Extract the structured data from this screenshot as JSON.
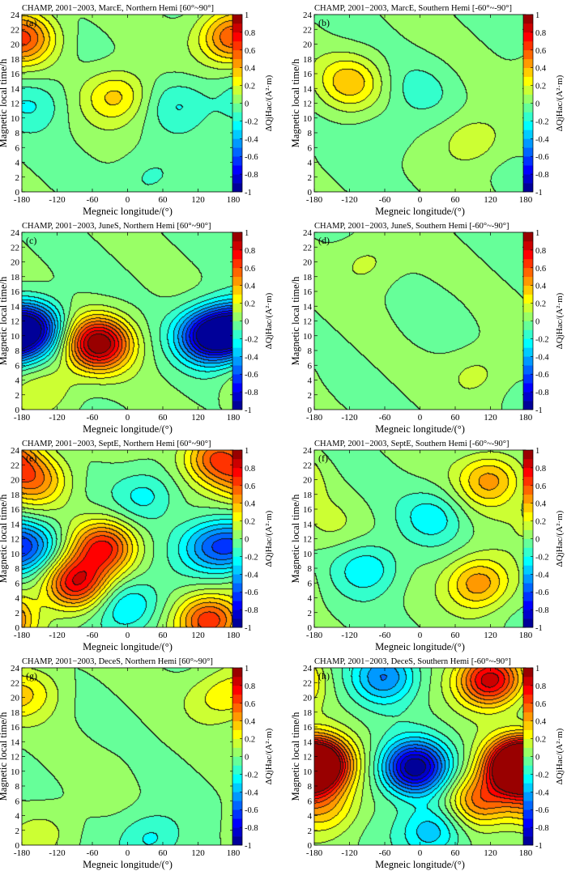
{
  "colorbar": {
    "ticks": [
      "1",
      "0.8",
      "0.6",
      "0.4",
      "0.2",
      "0",
      "-0.2",
      "-0.4",
      "-0.6",
      "-0.8",
      "-1"
    ],
    "label": "ΔQjHac/(A²·m)",
    "colormap": "jet",
    "range": [
      -1,
      1
    ]
  },
  "chart_data": [
    {
      "type": "heatmap",
      "panel": "(a)",
      "title": "CHAMP, 2001−2003, MarcE, Northern Hemi [60°~90°]",
      "xlabel": "Megneic longitude/(°)",
      "ylabel": "Magnetic local time/h",
      "xlim": [
        -180,
        180
      ],
      "ylim": [
        0,
        24
      ],
      "xticks": [
        "-180",
        "-120",
        "-60",
        "0",
        "60",
        "120",
        "180"
      ],
      "yticks": [
        "0",
        "2",
        "4",
        "6",
        "8",
        "10",
        "12",
        "14",
        "16",
        "18",
        "20",
        "22",
        "24"
      ],
      "features": [
        {
          "x": -20,
          "y": 13,
          "value": 0.35
        },
        {
          "x": -170,
          "y": 21,
          "value": 0.3
        },
        {
          "x": 170,
          "y": 21,
          "value": 0.35
        },
        {
          "x": -160,
          "y": 12,
          "value": -0.2
        },
        {
          "x": 90,
          "y": 12,
          "value": -0.2
        },
        {
          "x": 40,
          "y": 2,
          "value": -0.15
        }
      ]
    },
    {
      "type": "heatmap",
      "panel": "(b)",
      "title": "CHAMP, 2001−2003, MarcE, Southern Hemi [-60°~-90°]",
      "xlabel": "Megneic longitude/(°)",
      "ylabel": "Magnetic local time/h",
      "xlim": [
        -180,
        180
      ],
      "ylim": [
        0,
        24
      ],
      "xticks": [
        "-180",
        "-120",
        "-60",
        "0",
        "60",
        "120",
        "180"
      ],
      "yticks": [
        "0",
        "2",
        "4",
        "6",
        "8",
        "10",
        "12",
        "14",
        "16",
        "18",
        "20",
        "22",
        "24"
      ],
      "features": [
        {
          "x": -120,
          "y": 15,
          "value": 0.35
        },
        {
          "x": 90,
          "y": 7,
          "value": 0.2
        },
        {
          "x": 0,
          "y": 14,
          "value": -0.12
        },
        {
          "x": -60,
          "y": 8,
          "value": -0.1
        }
      ]
    },
    {
      "type": "heatmap",
      "panel": "(c)",
      "title": "CHAMP, 2001−2003, JuneS, Northern Hemi [60°~90°]",
      "xlabel": "Megneic longitude/(°)",
      "ylabel": "Magnetic local time/h",
      "xlim": [
        -180,
        180
      ],
      "ylim": [
        0,
        24
      ],
      "xticks": [
        "-180",
        "-120",
        "-60",
        "0",
        "60",
        "120",
        "180"
      ],
      "yticks": [
        "0",
        "2",
        "4",
        "6",
        "8",
        "10",
        "12",
        "14",
        "16",
        "18",
        "20",
        "22",
        "24"
      ],
      "features": [
        {
          "x": -50,
          "y": 9,
          "value": 1.0
        },
        {
          "x": -165,
          "y": 11,
          "value": -0.85
        },
        {
          "x": 140,
          "y": 10,
          "value": -0.95
        },
        {
          "x": -140,
          "y": 3,
          "value": 0.2
        }
      ]
    },
    {
      "type": "heatmap",
      "panel": "(d)",
      "title": "CHAMP, 2001−2003, JuneS, Southern Hemi [-60°~-90°]",
      "xlabel": "Megneic longitude/(°)",
      "ylabel": "Magnetic local time/h",
      "xlim": [
        -180,
        180
      ],
      "ylim": [
        0,
        24
      ],
      "xticks": [
        "-180",
        "-120",
        "-60",
        "0",
        "60",
        "120",
        "180"
      ],
      "yticks": [
        "0",
        "2",
        "4",
        "6",
        "8",
        "10",
        "12",
        "14",
        "16",
        "18",
        "20",
        "22",
        "24"
      ],
      "features": [
        {
          "x": -90,
          "y": 20,
          "value": 0.15
        },
        {
          "x": 100,
          "y": 5,
          "value": 0.15
        },
        {
          "x": 20,
          "y": 12,
          "value": -0.05
        }
      ]
    },
    {
      "type": "heatmap",
      "panel": "(e)",
      "title": "CHAMP, 2001−2003, SeptE, Northern Hemi [60°~90°]",
      "xlabel": "Megneic longitude/(°)",
      "ylabel": "Magnetic local time/h",
      "xlim": [
        -180,
        180
      ],
      "ylim": [
        0,
        24
      ],
      "xticks": [
        "-180",
        "-120",
        "-60",
        "0",
        "60",
        "120",
        "180"
      ],
      "yticks": [
        "0",
        "2",
        "4",
        "6",
        "8",
        "10",
        "12",
        "14",
        "16",
        "18",
        "20",
        "22",
        "24"
      ],
      "features": [
        {
          "x": -90,
          "y": 6,
          "value": 0.8
        },
        {
          "x": -40,
          "y": 11,
          "value": 0.7
        },
        {
          "x": -155,
          "y": 20,
          "value": 0.45
        },
        {
          "x": 150,
          "y": 23,
          "value": 0.6
        },
        {
          "x": 140,
          "y": 1,
          "value": 0.7
        },
        {
          "x": -165,
          "y": 11,
          "value": -0.45
        },
        {
          "x": 140,
          "y": 11,
          "value": -0.45
        },
        {
          "x": 30,
          "y": 18,
          "value": -0.25
        },
        {
          "x": 0,
          "y": 3,
          "value": -0.35
        }
      ]
    },
    {
      "type": "heatmap",
      "panel": "(f)",
      "title": "CHAMP, 2001−2003, SeptE, Southern Hemi [-60°~-90°]",
      "xlabel": "Megneic longitude/(°)",
      "ylabel": "Magnetic local time/h",
      "xlim": [
        -180,
        180
      ],
      "ylim": [
        0,
        24
      ],
      "xticks": [
        "-180",
        "-120",
        "-60",
        "0",
        "60",
        "120",
        "180"
      ],
      "yticks": [
        "0",
        "2",
        "4",
        "6",
        "8",
        "10",
        "12",
        "14",
        "16",
        "18",
        "20",
        "22",
        "24"
      ],
      "features": [
        {
          "x": 120,
          "y": 20,
          "value": 0.45
        },
        {
          "x": 100,
          "y": 6,
          "value": 0.5
        },
        {
          "x": -90,
          "y": 8,
          "value": -0.3
        },
        {
          "x": -160,
          "y": 14,
          "value": 0.1
        },
        {
          "x": 20,
          "y": 15,
          "value": -0.25
        }
      ]
    },
    {
      "type": "heatmap",
      "panel": "(g)",
      "title": "CHAMP, 2001−2003, DeceS, Northern Hemi [60°~90°]",
      "xlabel": "Megneic longitude/(°)",
      "ylabel": "Magnetic local time/h",
      "xlim": [
        -180,
        180
      ],
      "ylim": [
        0,
        24
      ],
      "xticks": [
        "-180",
        "-120",
        "-60",
        "0",
        "60",
        "120",
        "180"
      ],
      "yticks": [
        "0",
        "2",
        "4",
        "6",
        "8",
        "10",
        "12",
        "14",
        "16",
        "18",
        "20",
        "22",
        "24"
      ],
      "features": [
        {
          "x": -160,
          "y": 21,
          "value": 0.2
        },
        {
          "x": 150,
          "y": 20,
          "value": 0.2
        },
        {
          "x": 40,
          "y": 1,
          "value": -0.25
        },
        {
          "x": -140,
          "y": 2,
          "value": 0.15
        },
        {
          "x": 0,
          "y": 12,
          "value": 0.02
        }
      ]
    },
    {
      "type": "heatmap",
      "panel": "(h)",
      "title": "CHAMP, 2001−2003, DeceS, Southern Hemi [-60°~-90°]",
      "xlabel": "Megneic longitude/(°)",
      "ylabel": "Magnetic local time/h",
      "xlim": [
        -180,
        180
      ],
      "ylim": [
        0,
        24
      ],
      "xticks": [
        "-180",
        "-120",
        "-60",
        "0",
        "60",
        "120",
        "180"
      ],
      "yticks": [
        "0",
        "2",
        "4",
        "6",
        "8",
        "10",
        "12",
        "14",
        "16",
        "18",
        "20",
        "22",
        "24"
      ],
      "features": [
        {
          "x": -10,
          "y": 10.5,
          "value": -1.0
        },
        {
          "x": -175,
          "y": 11,
          "value": 0.95
        },
        {
          "x": 165,
          "y": 10.5,
          "value": 0.95
        },
        {
          "x": 120,
          "y": 22.5,
          "value": 0.9
        },
        {
          "x": 100,
          "y": 6,
          "value": 0.55
        },
        {
          "x": -60,
          "y": 23,
          "value": -0.5
        },
        {
          "x": -160,
          "y": 5,
          "value": 0.35
        },
        {
          "x": 20,
          "y": 2,
          "value": -0.4
        }
      ]
    }
  ]
}
